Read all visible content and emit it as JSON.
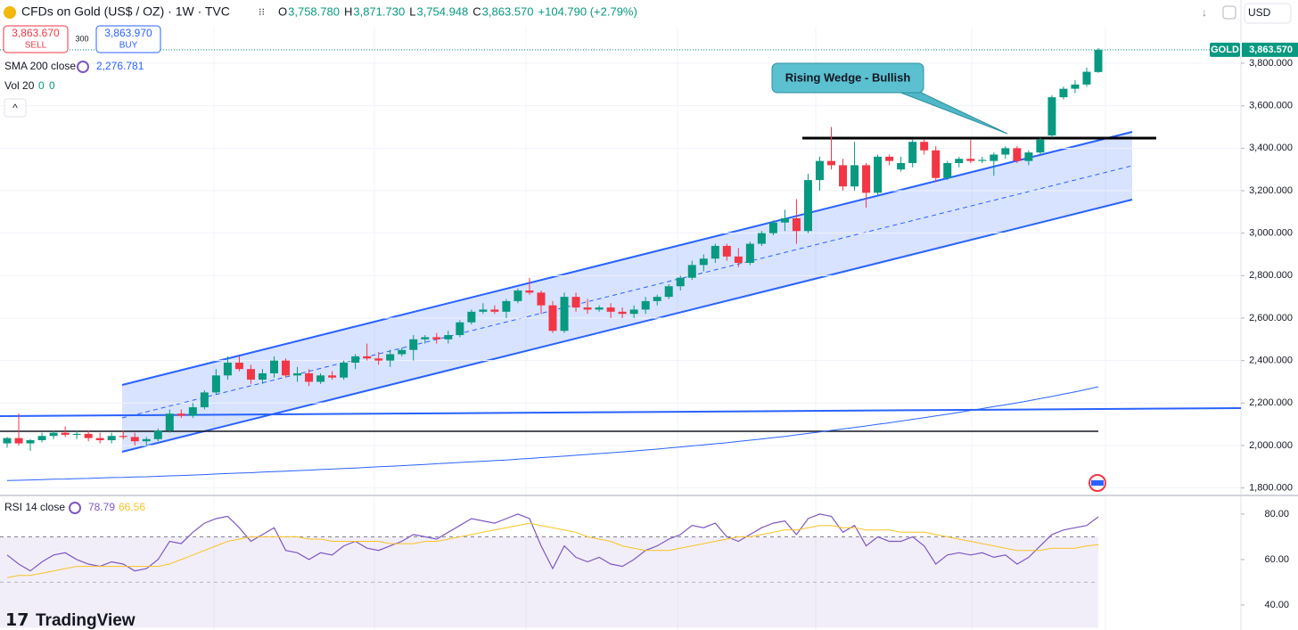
{
  "header": {
    "symbol": "CFDs on Gold (US$ / OZ) · 1W · TVC",
    "ohlc": [
      {
        "key": "O",
        "value": "3,758.780"
      },
      {
        "key": "H",
        "value": "3,871.730"
      },
      {
        "key": "L",
        "value": "3,754.948"
      },
      {
        "key": "C",
        "value": "3,863.570"
      }
    ],
    "change": "+104.790 (+2.79%)",
    "currency": "USD",
    "brand": "TradingView"
  },
  "trade": {
    "sell_price": "3,863.670",
    "sell": "SELL",
    "spread": "300",
    "buy_price": "3,863.970",
    "buy": "BUY"
  },
  "chart_data": [
    {
      "type": "candlestick",
      "up_color": "#089981",
      "down_color": "#f23645",
      "open": [
        2010,
        2035,
        2010,
        2025,
        2045,
        2060,
        2050,
        2055,
        2035,
        2025,
        2045,
        2040,
        2020,
        2030,
        2070,
        2150,
        2140,
        2180,
        2250,
        2330,
        2390,
        2360,
        2310,
        2340,
        2400,
        2330,
        2340,
        2300,
        2330,
        2320,
        2390,
        2420,
        2410,
        2400,
        2430,
        2450,
        2500,
        2510,
        2500,
        2520,
        2580,
        2630,
        2640,
        2630,
        2680,
        2730,
        2720,
        2660,
        2540,
        2700,
        2650,
        2640,
        2650,
        2630,
        2620,
        2640,
        2680,
        2700,
        2750,
        2790,
        2850,
        2880,
        2940,
        2890,
        2860,
        2950,
        3000,
        3050,
        3070,
        3010,
        3250,
        3340,
        3320,
        3220,
        3320,
        3190,
        3360,
        3300,
        3330,
        3430,
        3390,
        3260,
        3330,
        3350,
        3340,
        3340,
        3370,
        3400,
        3340,
        3380,
        3460,
        3640,
        3680,
        3700,
        3758.78
      ],
      "high": [
        2040,
        2150,
        2030,
        2060,
        2070,
        2090,
        2070,
        2070,
        2060,
        2060,
        2070,
        2060,
        2040,
        2080,
        2170,
        2170,
        2200,
        2260,
        2360,
        2420,
        2420,
        2380,
        2360,
        2420,
        2410,
        2370,
        2360,
        2340,
        2350,
        2400,
        2430,
        2480,
        2440,
        2450,
        2460,
        2520,
        2520,
        2530,
        2540,
        2590,
        2640,
        2670,
        2660,
        2690,
        2740,
        2790,
        2730,
        2680,
        2720,
        2720,
        2690,
        2660,
        2670,
        2650,
        2660,
        2700,
        2710,
        2760,
        2800,
        2870,
        2900,
        2950,
        2950,
        2930,
        2960,
        3010,
        3060,
        3110,
        3160,
        3280,
        3360,
        3500,
        3350,
        3430,
        3330,
        3370,
        3370,
        3360,
        3440,
        3440,
        3410,
        3340,
        3360,
        3440,
        3360,
        3380,
        3410,
        3410,
        3390,
        3450,
        3650,
        3690,
        3720,
        3780,
        3871.73
      ],
      "low": [
        1990,
        2000,
        1975,
        2015,
        2030,
        2040,
        2030,
        2020,
        2010,
        2010,
        2030,
        2000,
        2000,
        2020,
        2060,
        2130,
        2130,
        2170,
        2240,
        2310,
        2350,
        2290,
        2290,
        2320,
        2320,
        2300,
        2280,
        2290,
        2310,
        2310,
        2360,
        2400,
        2380,
        2370,
        2420,
        2400,
        2480,
        2480,
        2480,
        2510,
        2570,
        2620,
        2620,
        2600,
        2670,
        2710,
        2620,
        2530,
        2530,
        2630,
        2620,
        2630,
        2600,
        2600,
        2600,
        2620,
        2660,
        2690,
        2730,
        2780,
        2820,
        2860,
        2870,
        2840,
        2850,
        2940,
        2990,
        3010,
        2950,
        3000,
        3200,
        3300,
        3200,
        3200,
        3120,
        3180,
        3320,
        3290,
        3310,
        3370,
        3240,
        3250,
        3310,
        3330,
        3330,
        3270,
        3350,
        3330,
        3320,
        3370,
        3450,
        3630,
        3660,
        3690,
        3754.948
      ],
      "close": [
        2035,
        2010,
        2025,
        2045,
        2060,
        2050,
        2055,
        2035,
        2025,
        2045,
        2040,
        2020,
        2030,
        2070,
        2150,
        2140,
        2180,
        2250,
        2330,
        2390,
        2360,
        2310,
        2340,
        2400,
        2330,
        2340,
        2300,
        2330,
        2320,
        2390,
        2420,
        2410,
        2400,
        2430,
        2450,
        2500,
        2510,
        2500,
        2520,
        2580,
        2630,
        2640,
        2630,
        2680,
        2730,
        2720,
        2660,
        2540,
        2700,
        2650,
        2640,
        2650,
        2630,
        2620,
        2640,
        2680,
        2700,
        2750,
        2790,
        2850,
        2880,
        2940,
        2890,
        2860,
        2950,
        3000,
        3050,
        3070,
        3010,
        3250,
        3340,
        3320,
        3220,
        3320,
        3190,
        3360,
        3340,
        3330,
        3430,
        3390,
        3260,
        3330,
        3350,
        3340,
        3345,
        3370,
        3400,
        3340,
        3380,
        3440,
        3640,
        3680,
        3700,
        3760,
        3863.57
      ],
      "ylim": [
        1769,
        4098
      ],
      "yticks": [
        {
          "value": 1800,
          "label": "1,800.000"
        },
        {
          "value": 2000,
          "label": "2,000.000"
        },
        {
          "value": 2200,
          "label": "2,200.000"
        },
        {
          "value": 2400,
          "label": "2,400.000"
        },
        {
          "value": 2600,
          "label": "2,600.000"
        },
        {
          "value": 2800,
          "label": "2,800.000"
        },
        {
          "value": 3000,
          "label": "3,000.000"
        },
        {
          "value": 3200,
          "label": "3,200.000"
        },
        {
          "value": 3400,
          "label": "3,400.000"
        },
        {
          "value": 3600,
          "label": "3,600.000"
        },
        {
          "value": 3800,
          "label": "3,800.000"
        }
      ],
      "grid": true,
      "last_price": {
        "name": "GOLD",
        "value": 3863.57,
        "label": "3,863.570",
        "color": "#089981"
      },
      "sma": {
        "name": "SMA 200 close",
        "label": "2,276.781",
        "color": "#2962ff",
        "values": [
          1835,
          1836,
          1838,
          1839,
          1841,
          1842,
          1844,
          1845,
          1847,
          1849,
          1850,
          1852,
          1853,
          1855,
          1857,
          1859,
          1861,
          1863,
          1866,
          1868,
          1870,
          1872,
          1875,
          1877,
          1879,
          1882,
          1884,
          1887,
          1889,
          1892,
          1894,
          1897,
          1900,
          1902,
          1905,
          1908,
          1911,
          1914,
          1917,
          1920,
          1923,
          1926,
          1929,
          1932,
          1936,
          1939,
          1943,
          1946,
          1950,
          1954,
          1958,
          1962,
          1966,
          1970,
          1974,
          1979,
          1983,
          1988,
          1993,
          1998,
          2003,
          2008,
          2013,
          2019,
          2025,
          2031,
          2037,
          2043,
          2050,
          2057,
          2064,
          2071,
          2078,
          2085,
          2092,
          2100,
          2107,
          2115,
          2123,
          2131,
          2139,
          2147,
          2156,
          2165,
          2174,
          2183,
          2192,
          2201,
          2211,
          2221,
          2231,
          2242,
          2253,
          2264,
          2276.781
        ]
      },
      "volume": {
        "name": "Vol 20",
        "values": [
          0,
          0
        ]
      },
      "annotation": "Rising Wedge - Bullish"
    },
    {
      "type": "line",
      "title": "RSI 14 close",
      "series": [
        {
          "color": "#7e57c2",
          "values": [
            62,
            58,
            55,
            59,
            62,
            63,
            60,
            58,
            57,
            59,
            58,
            55,
            56,
            60,
            68,
            67,
            72,
            76,
            78,
            79,
            74,
            68,
            71,
            74,
            64,
            63,
            60,
            63,
            62,
            66,
            68,
            65,
            64,
            66,
            68,
            71,
            70,
            69,
            72,
            75,
            78,
            77,
            76,
            78,
            80,
            78,
            66,
            56,
            66,
            61,
            59,
            61,
            58,
            57,
            60,
            64,
            66,
            69,
            71,
            75,
            74,
            76,
            70,
            68,
            71,
            74,
            76,
            77,
            71,
            78,
            80,
            79,
            72,
            75,
            66,
            70,
            68,
            68,
            70,
            66,
            58,
            62,
            63,
            62,
            63,
            61,
            62,
            58,
            61,
            66,
            71,
            73,
            74,
            75,
            78.79
          ]
        },
        {
          "color": "#f7c325",
          "values": [
            52,
            53,
            53,
            54,
            55,
            56,
            57,
            57,
            57,
            57,
            57,
            57,
            57,
            57,
            58,
            60,
            62,
            64,
            66,
            68,
            69,
            70,
            70,
            70,
            70,
            70,
            69,
            69,
            68,
            68,
            68,
            68,
            68,
            67,
            67,
            67,
            68,
            68,
            69,
            70,
            71,
            72,
            73,
            74,
            75,
            76,
            75,
            74,
            73,
            72,
            70,
            69,
            68,
            66,
            65,
            64,
            64,
            64,
            65,
            66,
            67,
            68,
            69,
            70,
            70,
            71,
            72,
            73,
            73,
            74,
            75,
            75,
            74,
            74,
            73,
            73,
            73,
            72,
            72,
            72,
            71,
            70,
            69,
            68,
            67,
            66,
            65,
            64,
            64,
            64,
            65,
            65,
            65,
            66,
            66.56
          ]
        }
      ],
      "ylim": [
        29,
        87.8
      ],
      "yticks": [
        {
          "value": 40,
          "label": "40.00"
        },
        {
          "value": 60,
          "label": "60.00"
        },
        {
          "value": 80,
          "label": "80.00"
        }
      ],
      "band": [
        30,
        70
      ],
      "midline": 50
    }
  ]
}
